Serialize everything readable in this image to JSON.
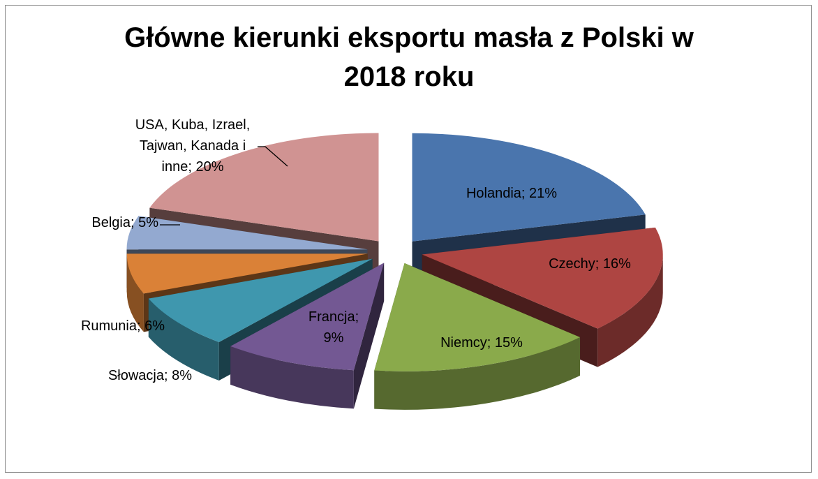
{
  "chart_data": {
    "type": "pie",
    "title_lines": [
      "Główne kierunki eksportu masła z Polski w",
      "2018 roku"
    ],
    "legend": "none",
    "slices": [
      {
        "name": "Holandia",
        "value": 21,
        "color": "#4a75ad",
        "label_lines": [
          "Holandia; 21%"
        ]
      },
      {
        "name": "Czechy",
        "value": 16,
        "color": "#ae4542",
        "label_lines": [
          "Czechy; 16%"
        ]
      },
      {
        "name": "Niemcy",
        "value": 15,
        "color": "#8aaa4b",
        "label_lines": [
          "Niemcy; 15%"
        ]
      },
      {
        "name": "Francja",
        "value": 9,
        "color": "#735893",
        "label_lines": [
          "Francja;",
          "9%"
        ]
      },
      {
        "name": "Słowacja",
        "value": 8,
        "color": "#3f97ae",
        "label_lines": [
          "Słowacja; 8%"
        ]
      },
      {
        "name": "Rumunia",
        "value": 6,
        "color": "#da8137",
        "label_lines": [
          "Rumunia; 6%"
        ]
      },
      {
        "name": "Belgia",
        "value": 5,
        "color": "#93a9d0",
        "label_lines": [
          "Belgia; 5%"
        ]
      },
      {
        "name": "USA, Kuba, Izrael, Tajwan, Kanada i inne",
        "value": 20,
        "color": "#d09392",
        "label_lines": [
          "USA, Kuba, Izrael,",
          "Tajwan, Kanada i",
          "inne; 20%"
        ]
      }
    ]
  }
}
